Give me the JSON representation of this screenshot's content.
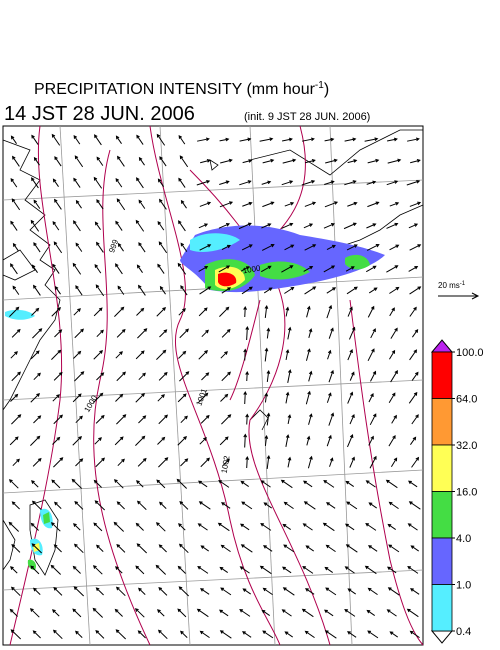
{
  "header": {
    "title": {
      "main": "PRECIPITATION INTENSITY (mm hour",
      "exponent": "-1",
      "close": ")"
    },
    "valid_time": "14 JST 28 JUN. 2006",
    "init_time": "(init. 9 JST 28 JUN. 2006)"
  },
  "vector_scale": {
    "main": "20 ms",
    "exponent": "-1"
  },
  "contour_labels": [
    "999",
    "1000",
    "1000",
    "1001",
    "1002"
  ],
  "colorbar": {
    "ticks": [
      {
        "value": 100,
        "label": "100.0"
      },
      {
        "value": 64,
        "label": "64.0"
      },
      {
        "value": 32,
        "label": "32.0"
      },
      {
        "value": 16,
        "label": "16.0"
      },
      {
        "value": 4,
        "label": "4.0"
      },
      {
        "value": 1,
        "label": "1.0"
      },
      {
        "value": 0.4,
        "label": "0.4"
      }
    ],
    "colors": [
      "#ff0000",
      "#ff9933",
      "#ffff55",
      "#44dd44",
      "#6666ff",
      "#55eeff"
    ],
    "over_color": "#bb22ee",
    "under_color": "#ffffff"
  }
}
